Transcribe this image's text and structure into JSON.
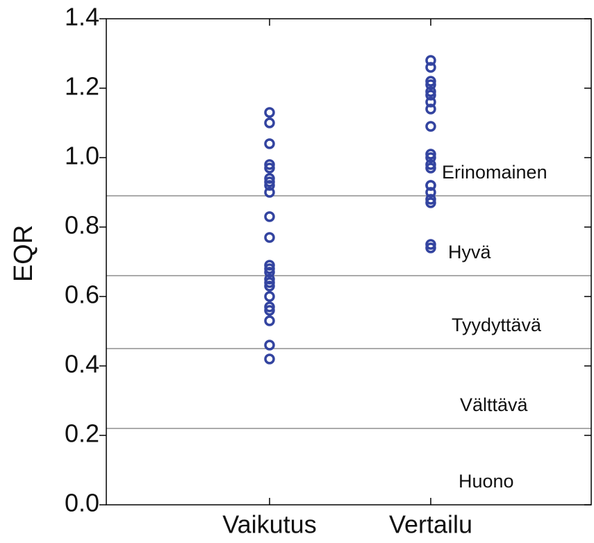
{
  "chart_data": {
    "type": "strip",
    "y_label": "EQR",
    "categories": [
      "Vaikutus",
      "Vertailu"
    ],
    "values": [
      [
        1.13,
        1.1,
        1.04,
        0.98,
        0.97,
        0.94,
        0.93,
        0.92,
        0.9,
        0.83,
        0.77,
        0.69,
        0.68,
        0.67,
        0.65,
        0.64,
        0.63,
        0.6,
        0.57,
        0.56,
        0.53,
        0.46,
        0.42
      ],
      [
        1.28,
        1.26,
        1.22,
        1.21,
        1.19,
        1.18,
        1.16,
        1.14,
        1.09,
        1.01,
        1.0,
        0.98,
        0.97,
        0.92,
        0.92,
        0.9,
        0.88,
        0.87,
        0.75,
        0.74
      ]
    ],
    "color": "#3344a0",
    "ylim": [
      0,
      1.4
    ],
    "yticks": [
      {
        "value": 0,
        "label": "0.0"
      },
      0.2,
      0.4,
      0.6,
      0.8,
      {
        "value": 1,
        "label": "1.0"
      },
      1.2,
      1.4
    ],
    "thresholds": [
      0.89,
      0.66,
      0.45,
      0.22
    ],
    "class_labels": [
      "Erinomainen",
      "Hyvä",
      "Tyydyttävä",
      "Välttävä",
      "Huono"
    ]
  }
}
